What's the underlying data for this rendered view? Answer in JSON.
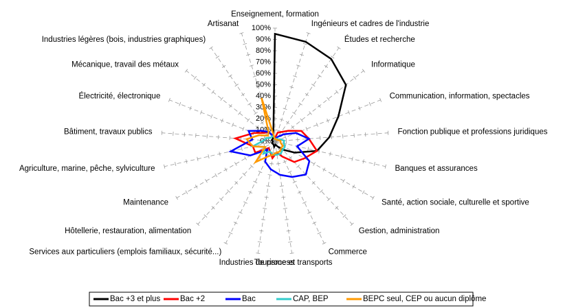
{
  "chart_data": {
    "type": "radar",
    "categories": [
      "Enseignement, formation",
      "Ingénieurs et cadres de l'industrie",
      "Études et recherche",
      "Informatique",
      "Communication, information, spectacles",
      "Fonction publique et professions juridiques",
      "Banques et assurances",
      "Santé, action sociale, culturelle et sportive",
      "Gestion, administration",
      "Commerce",
      "Tourisme et transports",
      "Industries de process",
      "Services aux particuliers (emplois familiaux, sécurité...)",
      "Hôtellerie, restauration, alimentation",
      "Maintenance",
      "Agriculture, marine, pêche, sylviculture",
      "Bâtiment, travaux publics",
      "Électricité, électronique",
      "Mécanique, travail des métaux",
      "Industries légères (bois, industries graphiques)",
      "Artisanat"
    ],
    "series": [
      {
        "name": "Bac +3 et plus",
        "color": "#000000",
        "values": [
          95,
          92,
          88,
          80,
          60,
          48,
          38,
          20,
          10,
          5,
          3,
          5,
          3,
          3,
          3,
          2,
          2,
          3,
          3,
          3,
          5
        ]
      },
      {
        "name": "Bac +2",
        "color": "#ff0000",
        "values": [
          3,
          8,
          10,
          15,
          25,
          30,
          38,
          30,
          25,
          15,
          10,
          15,
          10,
          8,
          20,
          20,
          35,
          20,
          12,
          10,
          5
        ]
      },
      {
        "name": "Bac",
        "color": "#0000ff",
        "values": [
          3,
          3,
          5,
          10,
          20,
          30,
          20,
          35,
          40,
          35,
          30,
          25,
          20,
          10,
          25,
          40,
          20,
          25,
          15,
          10,
          5
        ]
      },
      {
        "name": "CAP, BEP",
        "color": "#33cccc",
        "values": [
          2,
          2,
          3,
          3,
          5,
          8,
          8,
          10,
          10,
          12,
          12,
          12,
          10,
          15,
          10,
          20,
          10,
          8,
          5,
          5,
          5
        ]
      },
      {
        "name": "BEPC seul, CEP ou aucun diplôme",
        "color": "#ff9900",
        "values": [
          2,
          2,
          2,
          2,
          3,
          5,
          5,
          8,
          8,
          10,
          10,
          12,
          15,
          25,
          10,
          20,
          25,
          15,
          8,
          10,
          40
        ]
      }
    ],
    "ylim": [
      0,
      100
    ],
    "yticks": [
      {
        "value": 0,
        "label": "0%"
      },
      {
        "value": 10,
        "label": "10%"
      },
      {
        "value": 20,
        "label": "20%"
      },
      {
        "value": 30,
        "label": "30%"
      },
      {
        "value": 40,
        "label": "40%"
      },
      {
        "value": 50,
        "label": "50%"
      },
      {
        "value": 60,
        "label": "60%"
      },
      {
        "value": 70,
        "label": "70%"
      },
      {
        "value": 80,
        "label": "80%"
      },
      {
        "value": 90,
        "label": "90%"
      },
      {
        "value": 100,
        "label": "100%"
      }
    ]
  }
}
